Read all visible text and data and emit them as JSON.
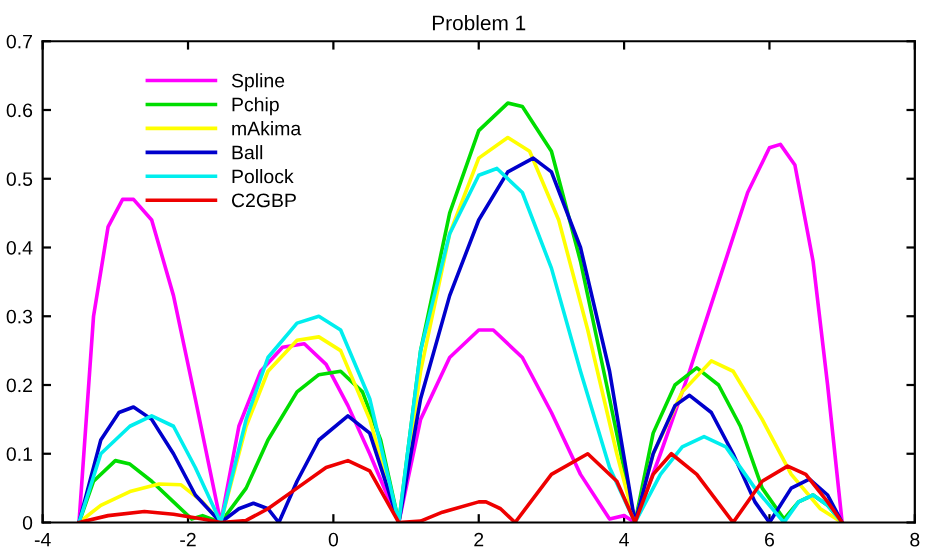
{
  "chart_data": {
    "type": "line",
    "title": "Problem 1",
    "xlim": [
      -4,
      8
    ],
    "xticks": [
      -4,
      -2,
      0,
      2,
      4,
      6,
      8
    ],
    "ylim": [
      0,
      0.7
    ],
    "yticks": [
      0,
      0.1,
      0.2,
      0.3,
      0.4,
      0.5,
      0.6,
      0.7
    ],
    "grid": false,
    "legend": "top left",
    "series": [
      {
        "name": "Spline",
        "color": "#ff00ff",
        "x": [
          -3.5,
          -3.3,
          -3.1,
          -2.9,
          -2.75,
          -2.5,
          -2.2,
          -1.9,
          -1.55,
          -1.3,
          -1.0,
          -0.7,
          -0.4,
          -0.1,
          0.2,
          0.5,
          0.9,
          1.2,
          1.6,
          2.0,
          2.2,
          2.6,
          3.0,
          3.4,
          3.8,
          4.0,
          4.15,
          4.5,
          4.9,
          5.3,
          5.7,
          6.0,
          6.15,
          6.35,
          6.6,
          6.8,
          7.0
        ],
        "values": [
          0,
          0.3,
          0.43,
          0.47,
          0.47,
          0.44,
          0.33,
          0.18,
          0,
          0.14,
          0.22,
          0.255,
          0.26,
          0.23,
          0.17,
          0.1,
          0,
          0.15,
          0.24,
          0.28,
          0.28,
          0.24,
          0.16,
          0.07,
          0.005,
          0.01,
          0,
          0.1,
          0.22,
          0.35,
          0.48,
          0.545,
          0.55,
          0.52,
          0.38,
          0.2,
          0
        ]
      },
      {
        "name": "Pchip",
        "color": "#00dd00",
        "x": [
          -3.5,
          -3.3,
          -3.0,
          -2.8,
          -2.5,
          -2.2,
          -1.95,
          -1.8,
          -1.55,
          -1.2,
          -0.9,
          -0.5,
          -0.2,
          0.1,
          0.4,
          0.65,
          0.9,
          1.2,
          1.6,
          2.0,
          2.4,
          2.6,
          3.0,
          3.4,
          3.8,
          4.15,
          4.4,
          4.7,
          5.0,
          5.3,
          5.6,
          5.9,
          6.2,
          6.4,
          6.6,
          6.8,
          7.0
        ],
        "values": [
          0,
          0.06,
          0.09,
          0.085,
          0.06,
          0.03,
          0.005,
          0.01,
          0,
          0.05,
          0.12,
          0.19,
          0.215,
          0.22,
          0.19,
          0.12,
          0,
          0.25,
          0.45,
          0.57,
          0.61,
          0.605,
          0.54,
          0.38,
          0.18,
          0,
          0.13,
          0.2,
          0.225,
          0.2,
          0.14,
          0.05,
          0.005,
          0.03,
          0.04,
          0.025,
          0
        ]
      },
      {
        "name": "mAkima",
        "color": "#ffff00",
        "x": [
          -3.5,
          -3.2,
          -2.8,
          -2.4,
          -2.1,
          -1.8,
          -1.55,
          -1.2,
          -0.9,
          -0.5,
          -0.2,
          0.1,
          0.5,
          0.9,
          1.2,
          1.6,
          2.0,
          2.4,
          2.7,
          3.1,
          3.5,
          3.9,
          4.15,
          4.4,
          4.8,
          5.2,
          5.5,
          5.9,
          6.3,
          6.7,
          7.0
        ],
        "values": [
          0,
          0.025,
          0.045,
          0.056,
          0.055,
          0.03,
          0,
          0.14,
          0.22,
          0.265,
          0.27,
          0.25,
          0.15,
          0,
          0.22,
          0.42,
          0.53,
          0.56,
          0.54,
          0.44,
          0.28,
          0.1,
          0,
          0.1,
          0.19,
          0.235,
          0.22,
          0.15,
          0.07,
          0.02,
          0
        ]
      },
      {
        "name": "Ball",
        "color": "#0000cc",
        "x": [
          -3.5,
          -3.2,
          -2.95,
          -2.75,
          -2.5,
          -2.2,
          -1.9,
          -1.55,
          -1.3,
          -1.1,
          -0.9,
          -0.75,
          -0.5,
          -0.2,
          0.2,
          0.5,
          0.9,
          1.2,
          1.6,
          2.0,
          2.4,
          2.75,
          3.0,
          3.4,
          3.8,
          4.15,
          4.4,
          4.7,
          4.9,
          5.2,
          5.5,
          5.8,
          6.0,
          6.3,
          6.55,
          6.8,
          7.0
        ],
        "values": [
          0,
          0.12,
          0.16,
          0.168,
          0.15,
          0.1,
          0.04,
          0,
          0.02,
          0.028,
          0.02,
          0,
          0.06,
          0.12,
          0.155,
          0.13,
          0,
          0.18,
          0.33,
          0.44,
          0.51,
          0.53,
          0.51,
          0.4,
          0.22,
          0,
          0.1,
          0.17,
          0.185,
          0.16,
          0.1,
          0.03,
          0,
          0.05,
          0.063,
          0.04,
          0
        ]
      },
      {
        "name": "Pollock",
        "color": "#00eeee",
        "x": [
          -3.5,
          -3.2,
          -2.8,
          -2.5,
          -2.2,
          -1.9,
          -1.55,
          -1.2,
          -0.9,
          -0.5,
          -0.2,
          0.1,
          0.5,
          0.9,
          1.2,
          1.6,
          2.0,
          2.25,
          2.6,
          3.0,
          3.4,
          3.8,
          4.15,
          4.5,
          4.8,
          5.1,
          5.4,
          5.8,
          6.2,
          6.4,
          6.6,
          6.8,
          7.0
        ],
        "values": [
          0,
          0.1,
          0.14,
          0.155,
          0.14,
          0.08,
          0,
          0.15,
          0.24,
          0.29,
          0.3,
          0.28,
          0.18,
          0,
          0.25,
          0.42,
          0.505,
          0.515,
          0.48,
          0.37,
          0.22,
          0.08,
          0,
          0.07,
          0.11,
          0.125,
          0.11,
          0.05,
          0,
          0.03,
          0.04,
          0.025,
          0
        ]
      },
      {
        "name": "C2GBP",
        "color": "#ee0000",
        "x": [
          -3.5,
          -3.1,
          -2.6,
          -2.2,
          -1.8,
          -1.55,
          -1.2,
          -0.9,
          -0.5,
          -0.1,
          0.2,
          0.5,
          0.9,
          1.2,
          1.5,
          2.0,
          2.1,
          2.3,
          2.5,
          3.0,
          3.5,
          3.9,
          4.15,
          4.4,
          4.65,
          5.0,
          5.5,
          5.9,
          6.25,
          6.5,
          6.8,
          7.0
        ],
        "values": [
          0,
          0.01,
          0.016,
          0.012,
          0.005,
          0,
          0.003,
          0.02,
          0.05,
          0.08,
          0.09,
          0.075,
          0,
          0.002,
          0.015,
          0.03,
          0.03,
          0.02,
          0,
          0.07,
          0.1,
          0.06,
          0,
          0.07,
          0.1,
          0.07,
          0,
          0.06,
          0.082,
          0.07,
          0.03,
          0
        ]
      }
    ]
  }
}
